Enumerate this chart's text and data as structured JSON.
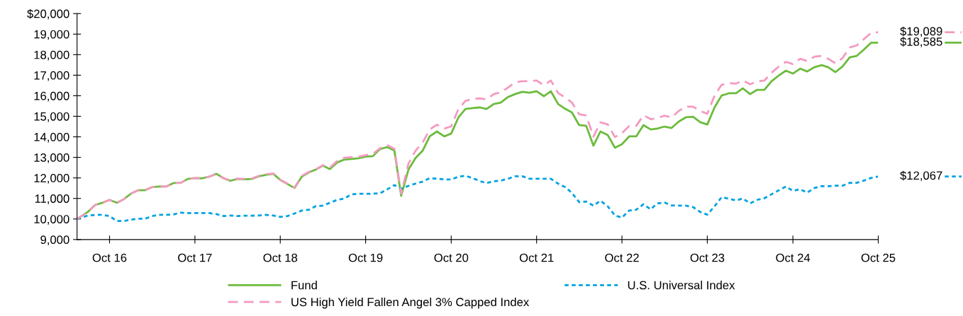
{
  "chart_data": {
    "type": "line",
    "x": [
      "2016-05-15",
      "2016-07",
      "2016-08",
      "2016-09",
      "2016-10",
      "2016-11",
      "2016-12",
      "2017-01",
      "2017-02",
      "2017-03",
      "2017-04",
      "2017-05",
      "2017-06",
      "2017-07",
      "2017-08",
      "2017-09",
      "2017-10",
      "2017-11",
      "2017-12",
      "2018-01",
      "2018-02",
      "2018-03",
      "2018-04",
      "2018-05",
      "2018-06",
      "2018-07",
      "2018-08",
      "2018-09",
      "2018-10",
      "2018-11",
      "2018-12",
      "2019-01",
      "2019-02",
      "2019-03",
      "2019-04",
      "2019-05",
      "2019-06",
      "2019-07",
      "2019-08",
      "2019-09",
      "2019-10",
      "2019-11",
      "2019-12",
      "2020-01",
      "2020-02",
      "2020-03",
      "2020-04",
      "2020-05",
      "2020-06",
      "2020-07",
      "2020-08",
      "2020-09",
      "2020-10",
      "2020-11",
      "2020-12",
      "2021-01",
      "2021-02",
      "2021-03",
      "2021-04",
      "2021-05",
      "2021-06",
      "2021-07",
      "2021-08",
      "2021-09",
      "2021-10",
      "2021-11",
      "2021-12",
      "2022-01",
      "2022-02",
      "2022-03",
      "2022-04",
      "2022-05",
      "2022-06",
      "2022-07",
      "2022-08",
      "2022-09",
      "2022-10",
      "2022-11",
      "2022-12",
      "2023-01",
      "2023-02",
      "2023-03",
      "2023-04",
      "2023-05",
      "2023-06",
      "2023-07",
      "2023-08",
      "2023-09",
      "2023-10",
      "2023-11",
      "2023-12",
      "2024-01",
      "2024-02",
      "2024-03",
      "2024-04",
      "2024-05",
      "2024-06",
      "2024-07",
      "2024-08",
      "2024-09",
      "2024-10",
      "2024-11",
      "2024-12",
      "2025-01",
      "2025-02",
      "2025-03",
      "2025-04",
      "2025-05",
      "2025-06",
      "2025-07",
      "2025-08",
      "2025-09",
      "2025-10"
    ],
    "series": [
      {
        "name": "Fund",
        "color": "#6cbb3c",
        "line_style": "solid",
        "values": [
          10000,
          10350,
          10690,
          10790,
          10930,
          10790,
          10960,
          11240,
          11400,
          11400,
          11550,
          11580,
          11580,
          11750,
          11760,
          11950,
          11990,
          11980,
          12060,
          12200,
          11980,
          11860,
          11950,
          11930,
          11950,
          12080,
          12150,
          12200,
          11900,
          11700,
          11510,
          12060,
          12270,
          12400,
          12600,
          12430,
          12750,
          12890,
          12920,
          12960,
          13030,
          13060,
          13400,
          13500,
          13330,
          11130,
          12400,
          12960,
          13330,
          14020,
          14260,
          14020,
          14160,
          14950,
          15360,
          15400,
          15430,
          15360,
          15600,
          15670,
          15940,
          16080,
          16190,
          16150,
          16220,
          15980,
          16220,
          15600,
          15360,
          15190,
          14570,
          14540,
          13570,
          14260,
          14090,
          13470,
          13640,
          14020,
          14020,
          14570,
          14360,
          14400,
          14500,
          14430,
          14740,
          14950,
          14980,
          14710,
          14600,
          15430,
          16010,
          16120,
          16120,
          16360,
          16080,
          16290,
          16290,
          16700,
          16980,
          17220,
          17080,
          17320,
          17180,
          17390,
          17490,
          17390,
          17150,
          17420,
          17870,
          17940,
          18250,
          18585,
          18585
        ],
        "value_labels": [
          null,
          null,
          null,
          null,
          null,
          null,
          null,
          null,
          null,
          null,
          null,
          null,
          null,
          null,
          null,
          null,
          null,
          null,
          null,
          null,
          null,
          null,
          null,
          null,
          null,
          null,
          null,
          null,
          null,
          null,
          null,
          null,
          null,
          null,
          null,
          null,
          null,
          null,
          null,
          null,
          null,
          null,
          null,
          null,
          null,
          null,
          null,
          null,
          null,
          null,
          null,
          null,
          null,
          null,
          null,
          null,
          null,
          null,
          null,
          null,
          null,
          null,
          null,
          null,
          null,
          null,
          null,
          null,
          null,
          null,
          null,
          null,
          null,
          null,
          null,
          null,
          null,
          null,
          null,
          null,
          null,
          null,
          null,
          null,
          null,
          null,
          null,
          null,
          null,
          null,
          null,
          null,
          null,
          null,
          null,
          null,
          null,
          null,
          null,
          null,
          null,
          null,
          null,
          null,
          null,
          null,
          null,
          null,
          null,
          null,
          null,
          null,
          "$18,585"
        ]
      },
      {
        "name": "U.S. Universal Index",
        "color": "#00a3e0",
        "line_style": "dotted",
        "values": [
          10000,
          10170,
          10200,
          10200,
          10140,
          9900,
          9900,
          9970,
          10010,
          10010,
          10140,
          10200,
          10200,
          10220,
          10310,
          10290,
          10290,
          10290,
          10290,
          10240,
          10140,
          10170,
          10140,
          10160,
          10160,
          10170,
          10200,
          10170,
          10100,
          10140,
          10270,
          10410,
          10450,
          10620,
          10650,
          10790,
          10930,
          10990,
          11200,
          11230,
          11230,
          11230,
          11250,
          11440,
          11650,
          11480,
          11610,
          11720,
          11820,
          11990,
          11960,
          11930,
          11920,
          12060,
          12100,
          11990,
          11840,
          11750,
          11840,
          11870,
          11960,
          12080,
          12080,
          11960,
          11960,
          11960,
          11960,
          11720,
          11550,
          11270,
          10820,
          10850,
          10650,
          10890,
          10620,
          10170,
          10070,
          10410,
          10450,
          10720,
          10470,
          10760,
          10800,
          10660,
          10650,
          10650,
          10580,
          10340,
          10210,
          10620,
          11060,
          10990,
          10900,
          11000,
          10760,
          10930,
          11010,
          11200,
          11390,
          11580,
          11370,
          11450,
          11280,
          11510,
          11600,
          11600,
          11620,
          11620,
          11760,
          11760,
          11870,
          12000,
          12067
        ],
        "value_labels": [
          null,
          null,
          null,
          null,
          null,
          null,
          null,
          null,
          null,
          null,
          null,
          null,
          null,
          null,
          null,
          null,
          null,
          null,
          null,
          null,
          null,
          null,
          null,
          null,
          null,
          null,
          null,
          null,
          null,
          null,
          null,
          null,
          null,
          null,
          null,
          null,
          null,
          null,
          null,
          null,
          null,
          null,
          null,
          null,
          null,
          null,
          null,
          null,
          null,
          null,
          null,
          null,
          null,
          null,
          null,
          null,
          null,
          null,
          null,
          null,
          null,
          null,
          null,
          null,
          null,
          null,
          null,
          null,
          null,
          null,
          null,
          null,
          null,
          null,
          null,
          null,
          null,
          null,
          null,
          null,
          null,
          null,
          null,
          null,
          null,
          null,
          null,
          null,
          null,
          null,
          null,
          null,
          null,
          null,
          null,
          null,
          null,
          null,
          null,
          null,
          null,
          null,
          null,
          null,
          null,
          null,
          null,
          null,
          null,
          null,
          null,
          null,
          "$12,067"
        ]
      },
      {
        "name": "US High Yield Fallen Angel 3% Capped Index",
        "color": "#f49ac1",
        "line_style": "dashed",
        "values": [
          10000,
          10350,
          10690,
          10790,
          10930,
          10770,
          10960,
          11240,
          11400,
          11400,
          11550,
          11580,
          11580,
          11750,
          11760,
          11950,
          11990,
          11980,
          12060,
          12200,
          11990,
          11880,
          11970,
          11950,
          11970,
          12100,
          12180,
          12220,
          11910,
          11720,
          11530,
          12100,
          12300,
          12400,
          12620,
          12500,
          12820,
          12980,
          13010,
          13030,
          13100,
          13170,
          13440,
          13600,
          13420,
          11240,
          12690,
          13320,
          13720,
          14360,
          14590,
          14400,
          14510,
          15360,
          15750,
          15840,
          15870,
          15820,
          16080,
          16170,
          16400,
          16650,
          16710,
          16710,
          16740,
          16510,
          16740,
          16130,
          15910,
          15670,
          15100,
          15040,
          14010,
          14700,
          14610,
          13990,
          14180,
          14530,
          14530,
          15050,
          14860,
          14910,
          15030,
          14940,
          15260,
          15470,
          15470,
          15260,
          15120,
          16010,
          16530,
          16620,
          16590,
          16740,
          16560,
          16700,
          16740,
          17110,
          17420,
          17650,
          17540,
          17800,
          17690,
          17900,
          17940,
          17800,
          17580,
          17830,
          18350,
          18450,
          18760,
          19070,
          19089
        ],
        "value_labels": [
          null,
          null,
          null,
          null,
          null,
          null,
          null,
          null,
          null,
          null,
          null,
          null,
          null,
          null,
          null,
          null,
          null,
          null,
          null,
          null,
          null,
          null,
          null,
          null,
          null,
          null,
          null,
          null,
          null,
          null,
          null,
          null,
          null,
          null,
          null,
          null,
          null,
          null,
          null,
          null,
          null,
          null,
          null,
          null,
          null,
          null,
          null,
          null,
          null,
          null,
          null,
          null,
          null,
          null,
          null,
          null,
          null,
          null,
          null,
          null,
          null,
          null,
          null,
          null,
          null,
          null,
          null,
          null,
          null,
          null,
          null,
          null,
          null,
          null,
          null,
          null,
          null,
          null,
          null,
          null,
          null,
          null,
          null,
          null,
          null,
          null,
          null,
          null,
          null,
          null,
          null,
          null,
          null,
          null,
          null,
          null,
          null,
          null,
          null,
          null,
          null,
          null,
          null,
          null,
          null,
          null,
          null,
          null,
          null,
          null,
          null,
          null,
          "$19,089"
        ]
      }
    ],
    "xlim": [
      "2016-05-15",
      "2025-10"
    ],
    "xticks": [
      {
        "value": "2016-10",
        "label": "Oct 16"
      },
      {
        "value": "2017-10",
        "label": "Oct 17"
      },
      {
        "value": "2018-10",
        "label": "Oct 18"
      },
      {
        "value": "2019-10",
        "label": "Oct 19"
      },
      {
        "value": "2020-10",
        "label": "Oct 20"
      },
      {
        "value": "2021-10",
        "label": "Oct 21"
      },
      {
        "value": "2022-10",
        "label": "Oct 22"
      },
      {
        "value": "2023-10",
        "label": "Oct 23"
      },
      {
        "value": "2024-10",
        "label": "Oct 24"
      },
      {
        "value": "2025-10",
        "label": "Oct 25"
      }
    ],
    "ylim": [
      9000,
      20000
    ],
    "yticks": [
      {
        "value": 9000,
        "label": "9,000"
      },
      {
        "value": 10000,
        "label": "10,000"
      },
      {
        "value": 11000,
        "label": "11,000"
      },
      {
        "value": 12000,
        "label": "12,000"
      },
      {
        "value": 13000,
        "label": "13,000"
      },
      {
        "value": 14000,
        "label": "14,000"
      },
      {
        "value": 15000,
        "label": "15,000"
      },
      {
        "value": 16000,
        "label": "16,000"
      },
      {
        "value": 17000,
        "label": "17,000"
      },
      {
        "value": 18000,
        "label": "18,000"
      },
      {
        "value": 19000,
        "label": "19,000"
      },
      {
        "value": 20000,
        "label": "$20,000"
      }
    ],
    "grid": false,
    "legend": "bottom",
    "marker": "none"
  }
}
